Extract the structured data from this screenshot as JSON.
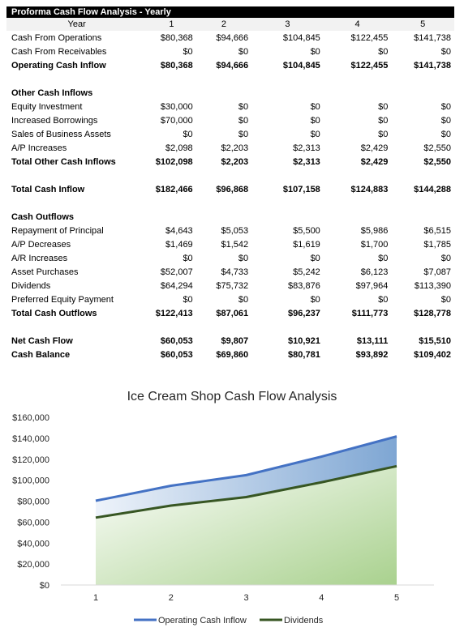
{
  "sheet": {
    "title": "Proforma Cash Flow Analysis - Yearly",
    "header": [
      "Year",
      "1",
      "2",
      "3",
      "4",
      "5"
    ],
    "rows": [
      {
        "label": "Cash From Operations",
        "values": [
          "$80,368",
          "$94,666",
          "$104,845",
          "$122,455",
          "$141,738"
        ],
        "bold": false
      },
      {
        "label": "Cash From Receivables",
        "values": [
          "$0",
          "$0",
          "$0",
          "$0",
          "$0"
        ],
        "bold": false
      },
      {
        "label": "Operating Cash Inflow",
        "values": [
          "$80,368",
          "$94,666",
          "$104,845",
          "$122,455",
          "$141,738"
        ],
        "bold": true
      },
      {
        "label": "",
        "values": [
          "",
          "",
          "",
          "",
          ""
        ],
        "bold": false
      },
      {
        "label": "Other Cash Inflows",
        "values": [
          "",
          "",
          "",
          "",
          ""
        ],
        "bold": true
      },
      {
        "label": "Equity Investment",
        "values": [
          "$30,000",
          "$0",
          "$0",
          "$0",
          "$0"
        ],
        "bold": false
      },
      {
        "label": "Increased Borrowings",
        "values": [
          "$70,000",
          "$0",
          "$0",
          "$0",
          "$0"
        ],
        "bold": false
      },
      {
        "label": "Sales of Business Assets",
        "values": [
          "$0",
          "$0",
          "$0",
          "$0",
          "$0"
        ],
        "bold": false
      },
      {
        "label": "A/P Increases",
        "values": [
          "$2,098",
          "$2,203",
          "$2,313",
          "$2,429",
          "$2,550"
        ],
        "bold": false
      },
      {
        "label": "Total Other Cash Inflows",
        "values": [
          "$102,098",
          "$2,203",
          "$2,313",
          "$2,429",
          "$2,550"
        ],
        "bold": true
      },
      {
        "label": "",
        "values": [
          "",
          "",
          "",
          "",
          ""
        ],
        "bold": false
      },
      {
        "label": "Total Cash Inflow",
        "values": [
          "$182,466",
          "$96,868",
          "$107,158",
          "$124,883",
          "$144,288"
        ],
        "bold": true
      },
      {
        "label": "",
        "values": [
          "",
          "",
          "",
          "",
          ""
        ],
        "bold": false
      },
      {
        "label": "Cash Outflows",
        "values": [
          "",
          "",
          "",
          "",
          ""
        ],
        "bold": true
      },
      {
        "label": "Repayment of Principal",
        "values": [
          "$4,643",
          "$5,053",
          "$5,500",
          "$5,986",
          "$6,515"
        ],
        "bold": false
      },
      {
        "label": "A/P Decreases",
        "values": [
          "$1,469",
          "$1,542",
          "$1,619",
          "$1,700",
          "$1,785"
        ],
        "bold": false
      },
      {
        "label": "A/R Increases",
        "values": [
          "$0",
          "$0",
          "$0",
          "$0",
          "$0"
        ],
        "bold": false
      },
      {
        "label": "Asset Purchases",
        "values": [
          "$52,007",
          "$4,733",
          "$5,242",
          "$6,123",
          "$7,087"
        ],
        "bold": false
      },
      {
        "label": "Dividends",
        "values": [
          "$64,294",
          "$75,732",
          "$83,876",
          "$97,964",
          "$113,390"
        ],
        "bold": false
      },
      {
        "label": "Preferred Equity Payment",
        "values": [
          "$0",
          "$0",
          "$0",
          "$0",
          "$0"
        ],
        "bold": false
      },
      {
        "label": "Total Cash Outflows",
        "values": [
          "$122,413",
          "$87,061",
          "$96,237",
          "$111,773",
          "$128,778"
        ],
        "bold": true
      },
      {
        "label": "",
        "values": [
          "",
          "",
          "",
          "",
          ""
        ],
        "bold": false
      },
      {
        "label": "Net Cash Flow",
        "values": [
          "$60,053",
          "$9,807",
          "$10,921",
          "$13,111",
          "$15,510"
        ],
        "bold": true
      },
      {
        "label": "Cash Balance",
        "values": [
          "$60,053",
          "$69,860",
          "$80,781",
          "$93,892",
          "$109,402"
        ],
        "bold": true
      }
    ]
  },
  "chart_data": {
    "type": "area",
    "title": "Ice Cream Shop Cash Flow Analysis",
    "x": [
      1,
      2,
      3,
      4,
      5
    ],
    "ylim": [
      0,
      160000
    ],
    "yticks": [
      0,
      20000,
      40000,
      60000,
      80000,
      100000,
      120000,
      140000,
      160000
    ],
    "ytick_labels": [
      "$0",
      "$20,000",
      "$40,000",
      "$60,000",
      "$80,000",
      "$100,000",
      "$120,000",
      "$140,000",
      "$160,000"
    ],
    "xtick_labels": [
      "1",
      "2",
      "3",
      "4",
      "5"
    ],
    "grid": false,
    "legend_position": "bottom",
    "series": [
      {
        "name": "Operating Cash Inflow",
        "values": [
          80368,
          94666,
          104845,
          122455,
          141738
        ],
        "color": "#4472c4"
      },
      {
        "name": "Dividends",
        "values": [
          64294,
          75732,
          83876,
          97964,
          113390
        ],
        "color": "#375623"
      }
    ]
  }
}
